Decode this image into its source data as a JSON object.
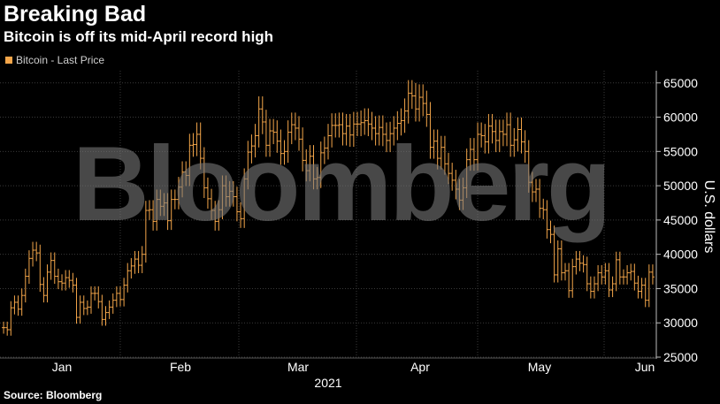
{
  "header": {
    "title": "Breaking Bad",
    "subtitle": "Bitcoin is off its mid-April record high"
  },
  "source": "Source: Bloomberg",
  "watermark": "Bloomberg",
  "colors": {
    "series": "#f4a64a",
    "background": "#000000",
    "grid": "#3a3a3a",
    "axis_text": "#ffffff"
  },
  "chart_data": {
    "type": "ohlc",
    "title": "",
    "ylabel": "U.S. dollars",
    "xlabel": "2021",
    "ylim": [
      25000,
      66000
    ],
    "y_ticks": [
      "25000",
      "30000",
      "35000",
      "40000",
      "45000",
      "50000",
      "55000",
      "60000",
      "65000"
    ],
    "x_tick_labels": [
      "Jan",
      "Feb",
      "Mar",
      "Apr",
      "May",
      "Jun"
    ],
    "grid": true,
    "legend": "top-left",
    "series": [
      {
        "name": "Bitcoin - Last Price",
        "values": [
          29300,
          29000,
          32200,
          33000,
          32000,
          34000,
          36800,
          39400,
          40600,
          40200,
          35600,
          34000,
          37400,
          39100,
          36800,
          36000,
          35800,
          36600,
          36200,
          35500,
          30800,
          33000,
          32100,
          32300,
          34300,
          34300,
          33100,
          30500,
          31500,
          32300,
          33300,
          34300,
          33400,
          35500,
          37600,
          38300,
          39300,
          38400,
          40000,
          46400,
          46500,
          44800,
          48000,
          47000,
          47500,
          44900,
          48000,
          48000,
          49800,
          52000,
          51500,
          55900,
          56000,
          57500,
          54000,
          49700,
          48100,
          46400,
          44800,
          46500,
          50000,
          48400,
          49200,
          48400,
          46200,
          45200,
          51000,
          54900,
          55800,
          57300,
          61200,
          59300,
          55900,
          58000,
          57800,
          56500,
          54700,
          55000,
          57800,
          58900,
          58400,
          56800,
          53700,
          52200,
          54300,
          51000,
          51200,
          54800,
          55500,
          57300,
          58800,
          58800,
          58900,
          57600,
          58700,
          57400,
          59000,
          59000,
          59200,
          59500,
          59000,
          58400,
          57600,
          58500,
          57500,
          56600,
          57600,
          58400,
          59100,
          59500,
          60900,
          63500,
          63100,
          61200,
          62900,
          62000,
          60400,
          55600,
          56500,
          54000,
          55600,
          53200,
          51800,
          50800,
          49500,
          47900,
          49700,
          53800,
          55300,
          53800,
          57500,
          57300,
          56400,
          58700,
          57900,
          56600,
          57900,
          57500,
          58900,
          55900,
          56700,
          58200,
          56400,
          55000,
          50500,
          49100,
          49500,
          46700,
          46500,
          43600,
          42900,
          37000,
          40800,
          37300,
          37600,
          34700,
          38200,
          39300,
          38700,
          38500,
          35700,
          34600,
          35700,
          37300,
          36700,
          37600,
          34800,
          35700,
          39200,
          36700,
          36700,
          37300,
          37500,
          35800,
          34600,
          35500,
          33300,
          37400,
          36700
        ]
      }
    ]
  }
}
